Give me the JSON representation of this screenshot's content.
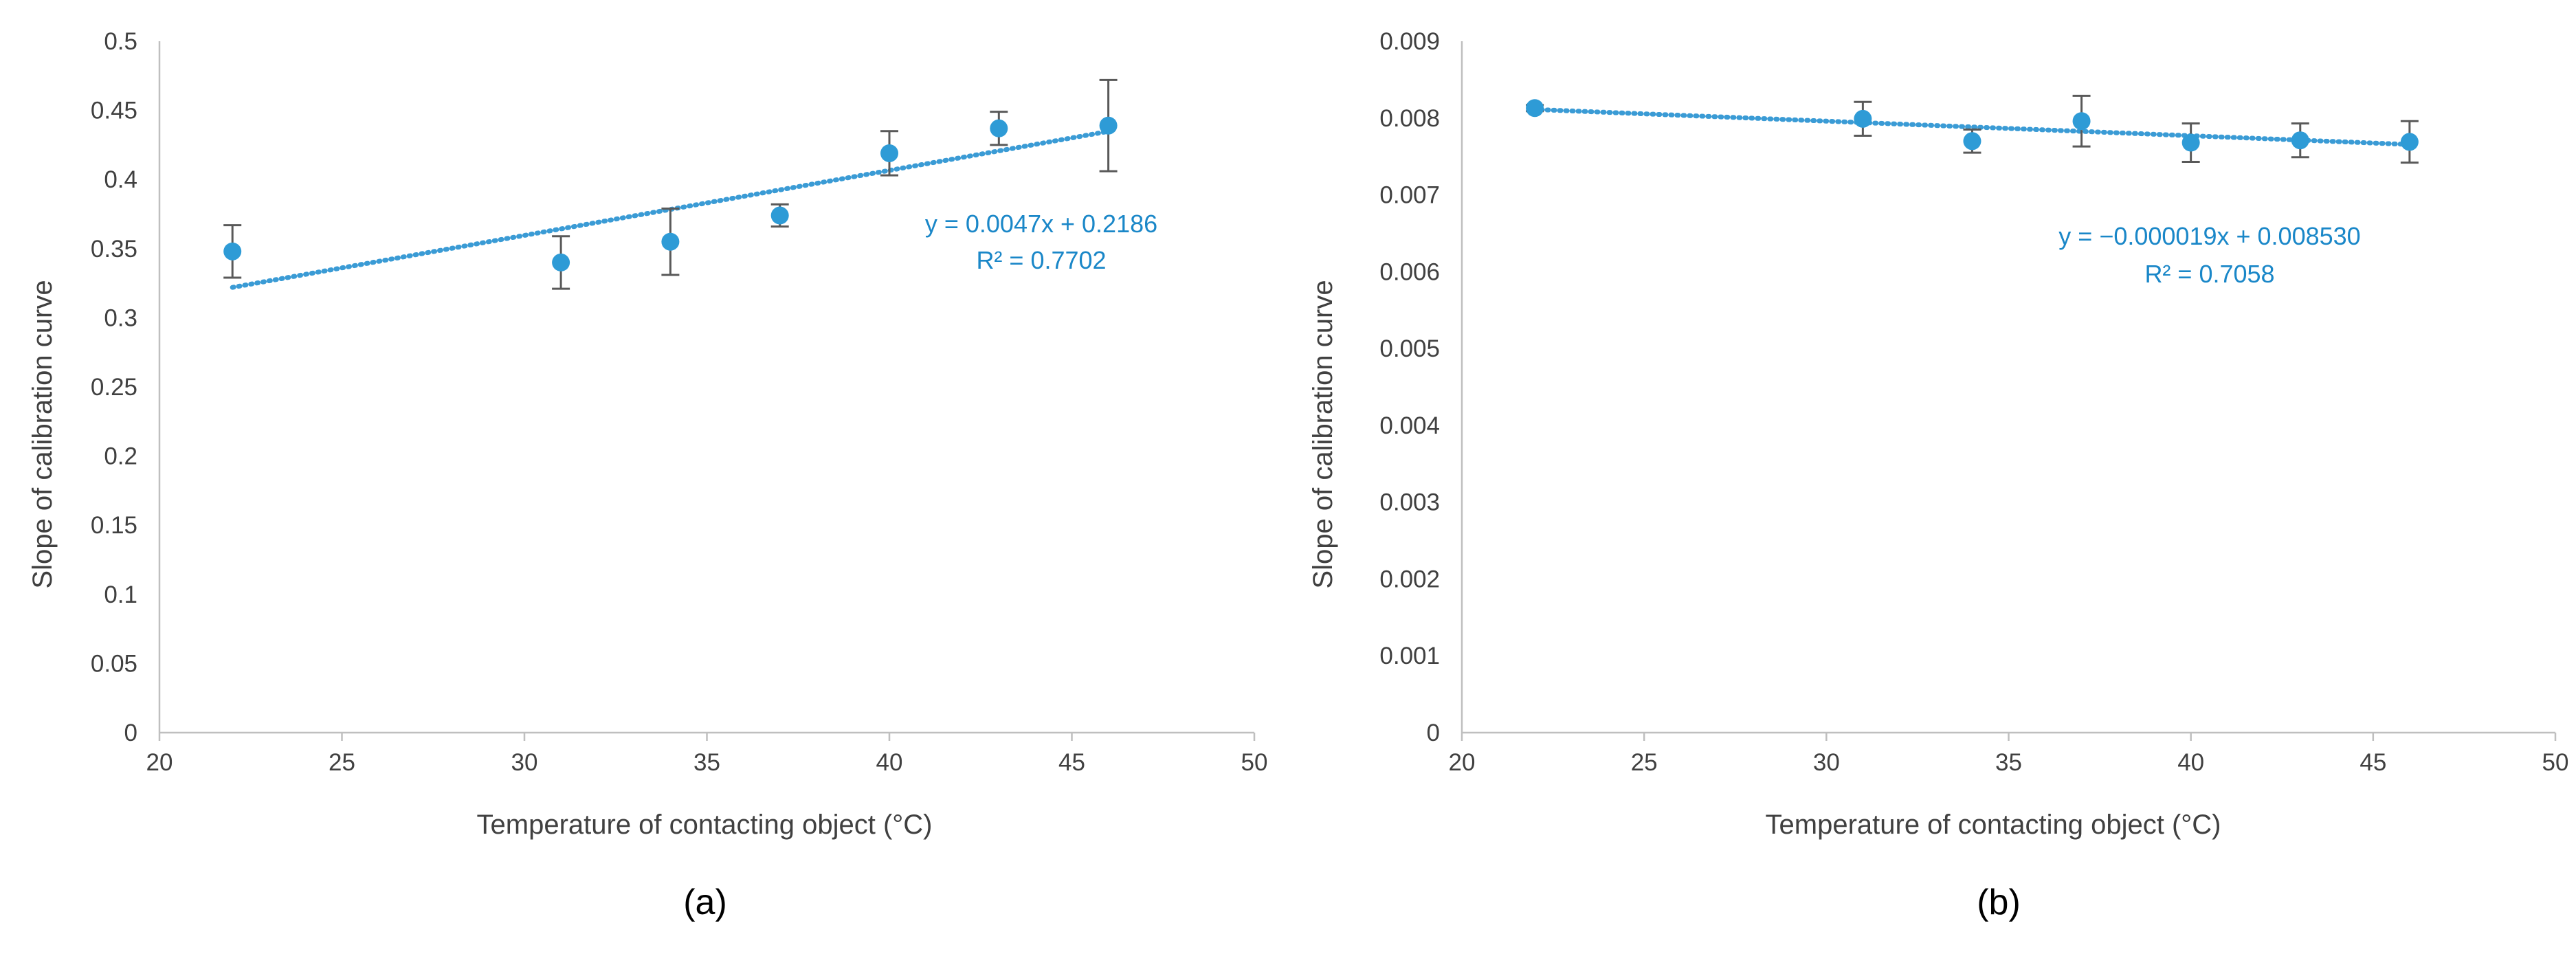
{
  "colors": {
    "marker": "#2e9bd6",
    "trendline": "#3a9bd5",
    "equation": "#1a87c8",
    "errorbar": "#595959",
    "axis": "#bfbfbf",
    "text": "#404040"
  },
  "chart_data": [
    {
      "type": "scatter",
      "panel_label": "(a)",
      "xlabel": "Temperature of contacting object (°C)",
      "ylabel": "Slope of calibration curve",
      "xlim": [
        20,
        50
      ],
      "ylim": [
        0,
        0.5
      ],
      "x_ticks": [
        20,
        25,
        30,
        35,
        40,
        45,
        50
      ],
      "x_tick_labels": [
        "20",
        "25",
        "30",
        "35",
        "40",
        "45",
        "50"
      ],
      "y_ticks": [
        0,
        0.05,
        0.1,
        0.15,
        0.2,
        0.25,
        0.3,
        0.35,
        0.4,
        0.45,
        0.5
      ],
      "y_tick_labels": [
        "0",
        "0.05",
        "0.1",
        "0.15",
        "0.2",
        "0.25",
        "0.3",
        "0.35",
        "0.4",
        "0.45",
        "0.5"
      ],
      "series": [
        {
          "name": "Slope",
          "x": [
            22,
            31,
            34,
            37,
            40,
            43,
            46
          ],
          "y": [
            0.348,
            0.34,
            0.355,
            0.374,
            0.419,
            0.437,
            0.439
          ],
          "err": [
            0.019,
            0.019,
            0.024,
            0.008,
            0.016,
            0.012,
            0.033
          ]
        }
      ],
      "trendline": {
        "type": "linear",
        "slope": 0.0047,
        "intercept": 0.2186,
        "x_range": [
          22,
          46
        ]
      },
      "equation_text": "y = 0.0047x + 0.2186",
      "r2_text": "R² = 0.7702",
      "grid": false
    },
    {
      "type": "scatter",
      "panel_label": "(b)",
      "xlabel": "Temperature of contacting object (°C)",
      "ylabel": "Slope of calibration curve",
      "xlim": [
        20,
        50
      ],
      "ylim": [
        0,
        0.009
      ],
      "x_ticks": [
        20,
        25,
        30,
        35,
        40,
        45,
        50
      ],
      "x_tick_labels": [
        "20",
        "25",
        "30",
        "35",
        "40",
        "45",
        "50"
      ],
      "y_ticks": [
        0,
        0.001,
        0.002,
        0.003,
        0.004,
        0.005,
        0.006,
        0.007,
        0.008,
        0.009
      ],
      "y_tick_labels": [
        "0",
        "0.001",
        "0.002",
        "0.003",
        "0.004",
        "0.005",
        "0.006",
        "0.007",
        "0.008",
        "0.009"
      ],
      "series": [
        {
          "name": "Slope",
          "x": [
            22,
            31,
            34,
            37,
            40,
            43,
            46
          ],
          "y": [
            0.00813,
            0.00799,
            0.0077,
            0.00796,
            0.00768,
            0.00771,
            0.00769
          ],
          "err": [
            4e-05,
            0.00022,
            0.00015,
            0.00033,
            0.00025,
            0.00022,
            0.00027
          ]
        }
      ],
      "trendline": {
        "type": "linear",
        "slope": -1.9e-05,
        "intercept": 0.00853,
        "x_range": [
          22,
          46
        ]
      },
      "equation_text": "y = −0.000019x + 0.008530",
      "r2_text": "R² = 0.7058",
      "grid": false
    }
  ]
}
